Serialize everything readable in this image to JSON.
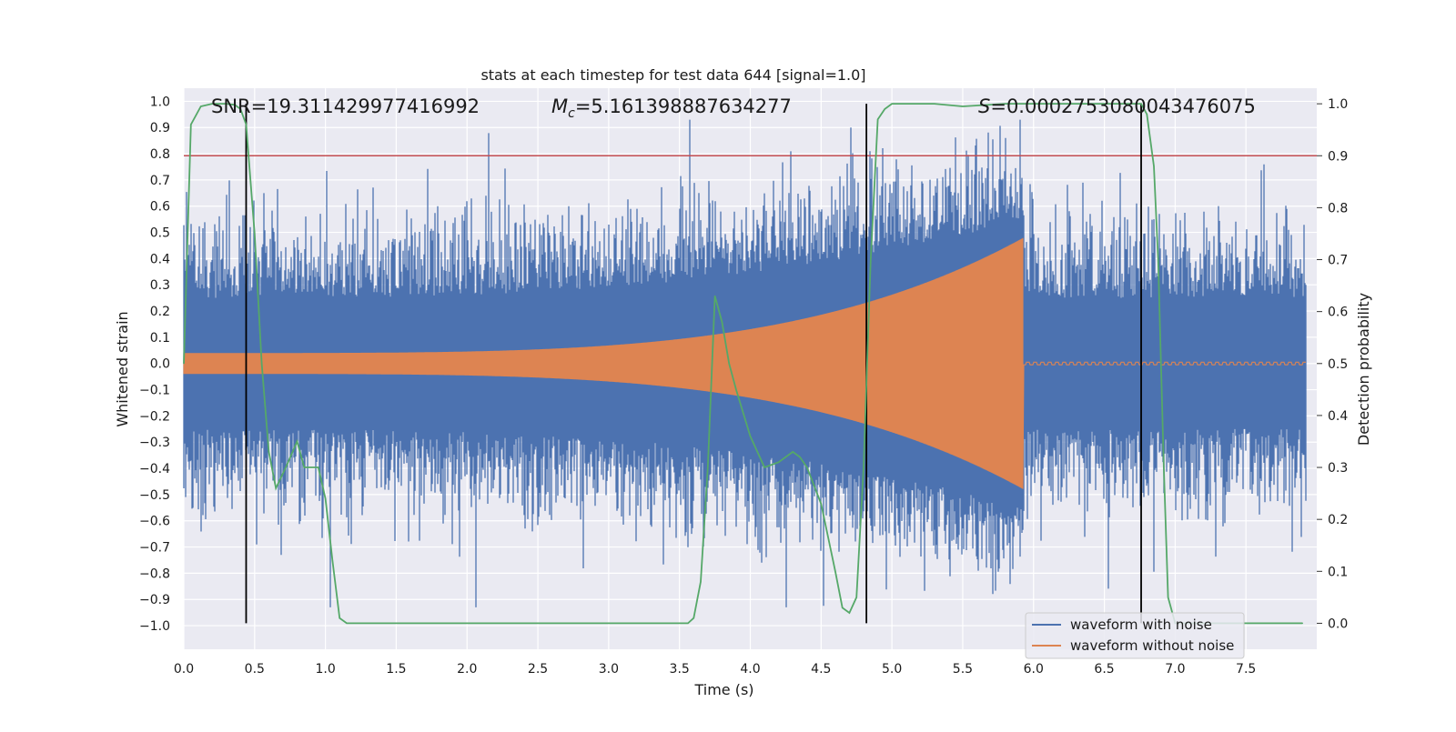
{
  "chart_data": {
    "type": "line",
    "title": "stats at each timestep for test data 644 [signal=1.0]",
    "xlabel": "Time (s)",
    "ylabel_left": "Whitened strain",
    "ylabel_right": "Detection probability",
    "xlim": [
      0.0,
      8.0
    ],
    "ylim_left": [
      -1.09,
      1.05
    ],
    "ylim_right": [
      -0.05,
      1.03
    ],
    "x_ticks": [
      "0.0",
      "0.5",
      "1.0",
      "1.5",
      "2.0",
      "2.5",
      "3.0",
      "3.5",
      "4.0",
      "4.5",
      "5.0",
      "5.5",
      "6.0",
      "6.5",
      "7.0",
      "7.5"
    ],
    "y_ticks_left": [
      "1.0",
      "0.9",
      "0.8",
      "0.7",
      "0.6",
      "0.5",
      "0.4",
      "0.3",
      "0.2",
      "0.1",
      "0.0",
      "−0.1",
      "−0.2",
      "−0.3",
      "−0.4",
      "−0.5",
      "−0.6",
      "−0.7",
      "−0.8",
      "−0.9",
      "−1.0"
    ],
    "y_ticks_right": [
      "1.0",
      "0.9",
      "0.8",
      "0.7",
      "0.6",
      "0.5",
      "0.4",
      "0.3",
      "0.2",
      "0.1",
      "0.0"
    ],
    "grid": true,
    "legend_position": "bottom-right",
    "annotations": {
      "snr": "SNR=19.311429977416992",
      "mc": "=5.161398887634277",
      "mc_symbol": "M",
      "mc_sub": "c",
      "s": "=0.0002753080043476075",
      "s_symbol": "S"
    },
    "series": [
      {
        "name": "waveform with noise",
        "color": "#4c72b0",
        "noise_envelope": 0.5,
        "peak_abs": 0.93,
        "chirp_amplitude_end": 0.3
      },
      {
        "name": "waveform without noise",
        "color": "#dd8452",
        "amplitude_start": 0.04,
        "amplitude_end": 0.48,
        "merger_time": 5.93,
        "ringdown_amplitude": 0.005
      },
      {
        "name": "detection probability",
        "color": "#55a868",
        "axis": "right",
        "x": [
          0.0,
          0.05,
          0.12,
          0.2,
          0.3,
          0.36,
          0.4,
          0.44,
          0.5,
          0.55,
          0.6,
          0.65,
          0.72,
          0.8,
          0.85,
          0.9,
          0.95,
          1.0,
          1.05,
          1.1,
          1.15,
          1.2,
          1.5,
          2.0,
          2.5,
          3.0,
          3.3,
          3.5,
          3.56,
          3.6,
          3.65,
          3.7,
          3.75,
          3.8,
          3.85,
          3.9,
          4.0,
          4.1,
          4.2,
          4.3,
          4.35,
          4.4,
          4.5,
          4.6,
          4.65,
          4.7,
          4.75,
          4.8,
          4.85,
          4.9,
          4.95,
          5.0,
          5.3,
          5.5,
          5.8,
          6.0,
          6.4,
          6.76,
          6.8,
          6.85,
          6.88,
          6.92,
          6.95,
          7.0,
          7.3,
          7.5,
          7.9
        ],
        "y": [
          0.5,
          0.96,
          0.995,
          1.0,
          1.0,
          0.998,
          0.99,
          0.96,
          0.75,
          0.5,
          0.33,
          0.26,
          0.3,
          0.35,
          0.3,
          0.3,
          0.3,
          0.24,
          0.12,
          0.01,
          0.0,
          0.0,
          0.0,
          0.0,
          0.0,
          0.0,
          0.0,
          0.0,
          0.0,
          0.01,
          0.08,
          0.3,
          0.63,
          0.58,
          0.5,
          0.45,
          0.36,
          0.3,
          0.31,
          0.33,
          0.32,
          0.3,
          0.23,
          0.1,
          0.03,
          0.02,
          0.05,
          0.3,
          0.7,
          0.97,
          0.99,
          1.0,
          1.0,
          0.995,
          1.0,
          1.0,
          1.0,
          1.0,
          0.98,
          0.88,
          0.7,
          0.3,
          0.05,
          0.0,
          0.0,
          0.0,
          0.0
        ]
      }
    ],
    "threshold": {
      "value": 0.9,
      "axis": "right",
      "color": "#c44e52"
    },
    "vertical_markers": [
      0.44,
      4.82,
      6.76
    ],
    "marker_color": "#000000"
  }
}
